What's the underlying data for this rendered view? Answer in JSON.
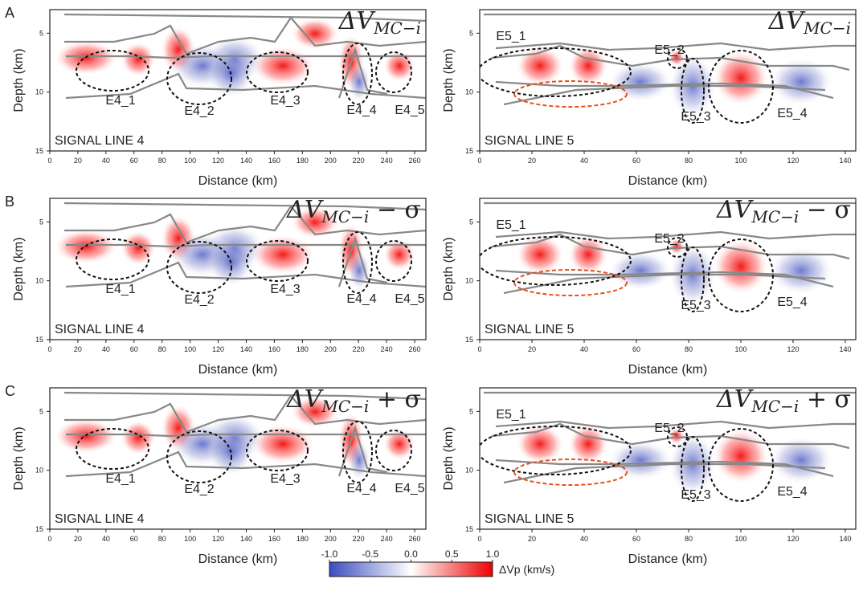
{
  "chart_data": [
    {
      "type": "section",
      "panel": "A",
      "title": {
        "base": "ΔV",
        "sub": "MC−i"
      },
      "line_label": "SIGNAL LINE 4",
      "xlabel": "Distance (km)",
      "ylabel": "Depth (km)",
      "xlim": [
        0,
        268
      ],
      "ylim": [
        3,
        15
      ],
      "xticks": [
        0,
        20,
        40,
        60,
        80,
        100,
        120,
        140,
        160,
        180,
        200,
        220,
        240,
        260
      ],
      "yticks": [
        5,
        10,
        15
      ],
      "annotations": [
        "E4_1",
        "E4_2",
        "E4_3",
        "E4_4",
        "E4_5"
      ]
    },
    {
      "type": "section",
      "title": {
        "base": "ΔV",
        "sub": "MC−i"
      },
      "line_label": "SIGNAL LINE 5",
      "xlabel": "Distance (km)",
      "ylabel": "Depth (km)",
      "xlim": [
        0,
        144
      ],
      "ylim": [
        3,
        15
      ],
      "xticks": [
        0,
        20,
        40,
        60,
        80,
        100,
        120,
        140
      ],
      "yticks": [
        5,
        10,
        15
      ],
      "annotations": [
        "E5_1",
        "E5_2",
        "E5_3",
        "E5_4"
      ]
    },
    {
      "type": "section",
      "panel": "B",
      "title": {
        "base": "ΔV",
        "sub": "MC−i",
        "suffix": " − σ"
      },
      "line_label": "SIGNAL LINE 4",
      "xlabel": "Distance (km)",
      "ylabel": "Depth (km)",
      "xlim": [
        0,
        268
      ],
      "ylim": [
        3,
        15
      ],
      "xticks": [
        0,
        20,
        40,
        60,
        80,
        100,
        120,
        140,
        160,
        180,
        200,
        220,
        240,
        260
      ],
      "yticks": [
        5,
        10,
        15
      ],
      "annotations": [
        "E4_1",
        "E4_2",
        "E4_3",
        "E4_4",
        "E4_5"
      ]
    },
    {
      "type": "section",
      "title": {
        "base": "ΔV",
        "sub": "MC−i",
        "suffix": " − σ"
      },
      "line_label": "SIGNAL LINE 5",
      "xlabel": "Distance (km)",
      "ylabel": "Depth (km)",
      "xlim": [
        0,
        144
      ],
      "ylim": [
        3,
        15
      ],
      "xticks": [
        0,
        20,
        40,
        60,
        80,
        100,
        120,
        140
      ],
      "yticks": [
        5,
        10,
        15
      ],
      "annotations": [
        "E5_1",
        "E5_2",
        "E5_3",
        "E5_4"
      ]
    },
    {
      "type": "section",
      "panel": "C",
      "title": {
        "base": "ΔV",
        "sub": "MC−i",
        "suffix": " + σ"
      },
      "line_label": "SIGNAL LINE 4",
      "xlabel": "Distance (km)",
      "ylabel": "Depth (km)",
      "xlim": [
        0,
        268
      ],
      "ylim": [
        3,
        15
      ],
      "xticks": [
        0,
        20,
        40,
        60,
        80,
        100,
        120,
        140,
        160,
        180,
        200,
        220,
        240,
        260
      ],
      "yticks": [
        5,
        10,
        15
      ],
      "annotations": [
        "E4_1",
        "E4_2",
        "E4_3",
        "E4_4",
        "E4_5"
      ]
    },
    {
      "type": "section",
      "title": {
        "base": "ΔV",
        "sub": "MC−i",
        "suffix": " + σ"
      },
      "line_label": "SIGNAL LINE 5",
      "xlabel": "Distance (km)",
      "ylabel": "Depth (km)",
      "xlim": [
        0,
        144
      ],
      "ylim": [
        3,
        15
      ],
      "xticks": [
        0,
        20,
        40,
        60,
        80,
        100,
        120,
        140
      ],
      "yticks": [
        5,
        10,
        15
      ],
      "annotations": [
        "E5_1",
        "E5_2",
        "E5_3",
        "E5_4"
      ]
    },
    {
      "type": "colorbar",
      "label": "ΔVp (km/s)",
      "xlim": [
        -1,
        1
      ],
      "xticks": [
        {
          "value": -1,
          "label": "-1.0"
        },
        -0.5,
        {
          "value": 0,
          "label": "0.0"
        },
        0.5,
        {
          "value": 1,
          "label": "1.0"
        }
      ],
      "colors": [
        "#3b4cc0",
        "#ffffff",
        "#ee0000"
      ]
    }
  ]
}
